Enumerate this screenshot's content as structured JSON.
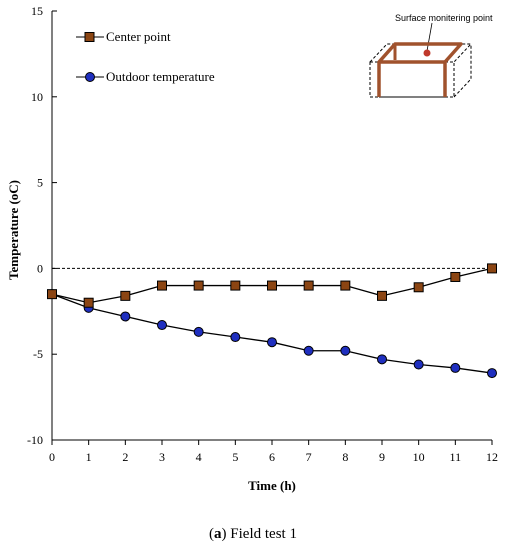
{
  "chart_data": {
    "type": "line",
    "xlabel": "Time (h)",
    "ylabel": "Temperature  (oC)",
    "x": [
      0,
      1,
      2,
      3,
      4,
      5,
      6,
      7,
      8,
      9,
      10,
      11,
      12
    ],
    "xlim": [
      0,
      12
    ],
    "ylim": [
      -10,
      15
    ],
    "xticks": [
      "0",
      "1",
      "2",
      "3",
      "4",
      "5",
      "6",
      "7",
      "8",
      "9",
      "10",
      "11",
      "12"
    ],
    "yticks": [
      "15",
      "10",
      "5",
      "0",
      "-5",
      "-10"
    ],
    "grid": false,
    "reference_line": {
      "y": 0,
      "style": "dashed"
    },
    "legend_position": "top-left",
    "series": [
      {
        "name": "Center point",
        "marker": "square",
        "color": "#8B4513",
        "values": [
          -1.5,
          -2.0,
          -1.6,
          -1.0,
          -1.0,
          -1.0,
          -1.0,
          -1.0,
          -1.0,
          -1.6,
          -1.1,
          -0.5,
          0.0
        ]
      },
      {
        "name": "Outdoor temperature",
        "marker": "circle",
        "color": "#1F2FBF",
        "values": [
          -1.5,
          -2.3,
          -2.8,
          -3.3,
          -3.7,
          -4.0,
          -4.3,
          -4.8,
          -4.8,
          -5.3,
          -5.6,
          -5.8,
          -6.1
        ]
      }
    ],
    "inset": {
      "label": "Surface monitering point",
      "frame_color": "#A0522D"
    }
  },
  "caption": {
    "letter": "a",
    "text": " Field test 1"
  }
}
